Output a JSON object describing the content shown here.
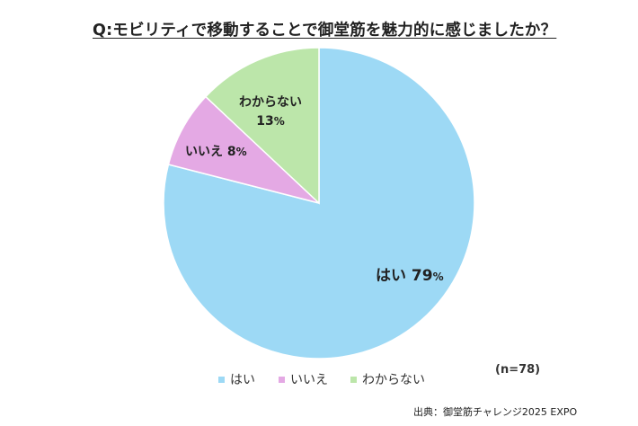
{
  "chart_data": {
    "type": "pie",
    "title": "Q:モビリティで移動することで御堂筋を魅力的に感じましたか？",
    "categories": [
      "はい",
      "いいえ",
      "わからない"
    ],
    "values": [
      79,
      8,
      13
    ],
    "unit": "%",
    "colors": [
      "#9dd9f5",
      "#e4a9e4",
      "#bce6aa"
    ],
    "start": "top",
    "direction": "clockwise",
    "labels": {
      "yes": "はい",
      "yes_pct": "79",
      "no": "いいえ",
      "no_pct": "8",
      "unknown": "わからない",
      "unknown_pct": "13",
      "pct_sign": "%"
    },
    "legend": [
      "はい",
      "いいえ",
      "わからない"
    ],
    "legend_position": "bottom",
    "sample": "(n=78)",
    "source": "出典：御堂筋チャレンジ2025 EXPO"
  }
}
